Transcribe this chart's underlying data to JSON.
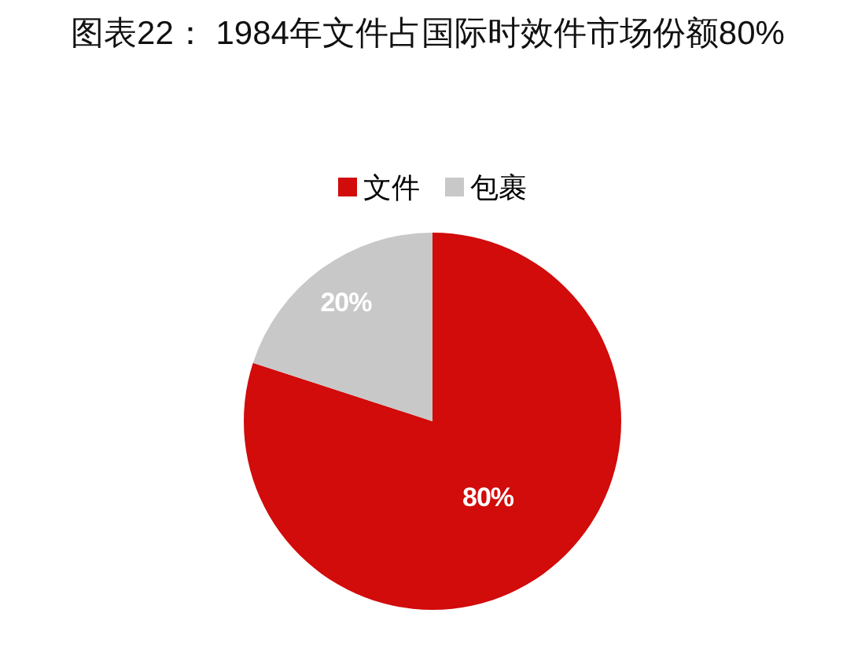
{
  "chart_data": {
    "type": "pie",
    "title": "图表22： 1984年文件占国际时效件市场份额80%",
    "categories": [
      "文件",
      "包裹"
    ],
    "values": [
      80,
      20
    ],
    "colors": [
      "#d20b0b",
      "#c8c8c8"
    ],
    "value_labels": [
      "80%",
      "20%"
    ],
    "legend": "top"
  }
}
